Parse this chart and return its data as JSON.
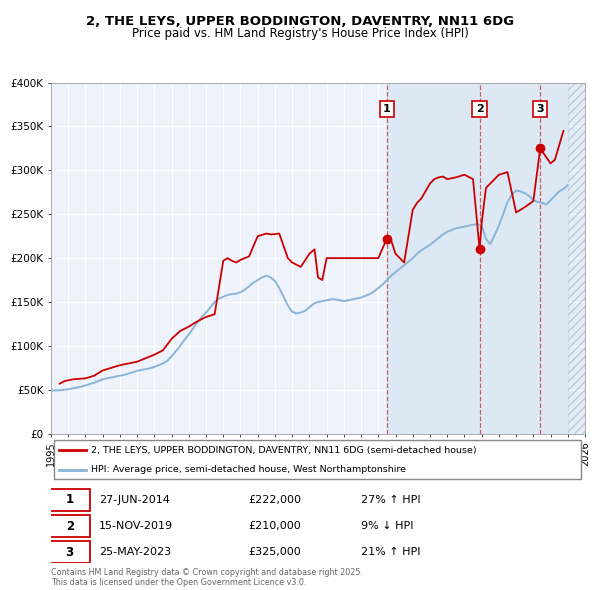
{
  "title": "2, THE LEYS, UPPER BODDINGTON, DAVENTRY, NN11 6DG",
  "subtitle": "Price paid vs. HM Land Registry's House Price Index (HPI)",
  "legend_line1": "2, THE LEYS, UPPER BODDINGTON, DAVENTRY, NN11 6DG (semi-detached house)",
  "legend_line2": "HPI: Average price, semi-detached house, West Northamptonshire",
  "footer": "Contains HM Land Registry data © Crown copyright and database right 2025.\nThis data is licensed under the Open Government Licence v3.0.",
  "title_fontsize": 9.5,
  "subtitle_fontsize": 8.5,
  "red_color": "#cc0000",
  "blue_color": "#8ab4d8",
  "shade_color": "#dce9f5",
  "background_color": "#eef2fa",
  "grid_color": "#ffffff",
  "transactions": [
    {
      "label": "1",
      "date_num": 2014.49,
      "price": 222000,
      "pct": "27%",
      "dir": "↑",
      "date_str": "27-JUN-2014"
    },
    {
      "label": "2",
      "date_num": 2019.88,
      "price": 210000,
      "pct": "9%",
      "dir": "↓",
      "date_str": "15-NOV-2019"
    },
    {
      "label": "3",
      "date_num": 2023.4,
      "price": 325000,
      "pct": "21%",
      "dir": "↑",
      "date_str": "25-MAY-2023"
    }
  ],
  "hpi_data": {
    "years": [
      1995.0,
      1995.25,
      1995.5,
      1995.75,
      1996.0,
      1996.25,
      1996.5,
      1996.75,
      1997.0,
      1997.25,
      1997.5,
      1997.75,
      1998.0,
      1998.25,
      1998.5,
      1998.75,
      1999.0,
      1999.25,
      1999.5,
      1999.75,
      2000.0,
      2000.25,
      2000.5,
      2000.75,
      2001.0,
      2001.25,
      2001.5,
      2001.75,
      2002.0,
      2002.25,
      2002.5,
      2002.75,
      2003.0,
      2003.25,
      2003.5,
      2003.75,
      2004.0,
      2004.25,
      2004.5,
      2004.75,
      2005.0,
      2005.25,
      2005.5,
      2005.75,
      2006.0,
      2006.25,
      2006.5,
      2006.75,
      2007.0,
      2007.25,
      2007.5,
      2007.75,
      2008.0,
      2008.25,
      2008.5,
      2008.75,
      2009.0,
      2009.25,
      2009.5,
      2009.75,
      2010.0,
      2010.25,
      2010.5,
      2010.75,
      2011.0,
      2011.25,
      2011.5,
      2011.75,
      2012.0,
      2012.25,
      2012.5,
      2012.75,
      2013.0,
      2013.25,
      2013.5,
      2013.75,
      2014.0,
      2014.25,
      2014.5,
      2014.75,
      2015.0,
      2015.25,
      2015.5,
      2015.75,
      2016.0,
      2016.25,
      2016.5,
      2016.75,
      2017.0,
      2017.25,
      2017.5,
      2017.75,
      2018.0,
      2018.25,
      2018.5,
      2018.75,
      2019.0,
      2019.25,
      2019.5,
      2019.75,
      2020.0,
      2020.25,
      2020.5,
      2020.75,
      2021.0,
      2021.25,
      2021.5,
      2021.75,
      2022.0,
      2022.25,
      2022.5,
      2022.75,
      2023.0,
      2023.25,
      2023.5,
      2023.75,
      2024.0,
      2024.25,
      2024.5,
      2024.75,
      2025.0
    ],
    "values": [
      49000,
      49200,
      49500,
      50000,
      50500,
      51500,
      52500,
      53500,
      55000,
      56500,
      58000,
      60000,
      62000,
      63000,
      64000,
      65000,
      66000,
      67000,
      68500,
      70000,
      71500,
      72500,
      73500,
      74500,
      76000,
      78000,
      80000,
      83000,
      88000,
      94000,
      100000,
      107000,
      113000,
      120000,
      127000,
      133000,
      138000,
      144000,
      150000,
      154000,
      156000,
      158000,
      159000,
      159500,
      161000,
      164000,
      168000,
      172000,
      175000,
      178000,
      180000,
      178000,
      174000,
      166000,
      156000,
      146000,
      139000,
      137000,
      138000,
      140000,
      144000,
      148000,
      150000,
      151000,
      152000,
      153000,
      153000,
      152000,
      151000,
      152000,
      153000,
      154000,
      155000,
      157000,
      159000,
      162000,
      166000,
      170000,
      175000,
      180000,
      184000,
      188000,
      192000,
      196000,
      200000,
      205000,
      209000,
      212000,
      215000,
      219000,
      223000,
      227000,
      230000,
      232000,
      234000,
      235000,
      236000,
      237000,
      238000,
      239000,
      237000,
      222000,
      216000,
      226000,
      237000,
      250000,
      264000,
      272000,
      277000,
      276000,
      274000,
      271000,
      266000,
      264000,
      263000,
      261000,
      266000,
      271000,
      276000,
      279000,
      283000
    ]
  },
  "price_data": {
    "years": [
      1995.5,
      1995.8,
      1996.3,
      1997.0,
      1997.5,
      1998.0,
      1998.5,
      1999.0,
      1999.5,
      2000.0,
      2000.5,
      2001.0,
      2001.5,
      2002.0,
      2002.5,
      2003.0,
      2003.5,
      2004.0,
      2004.5,
      2005.0,
      2005.25,
      2005.5,
      2005.75,
      2006.0,
      2006.5,
      2007.0,
      2007.5,
      2007.8,
      2008.25,
      2008.75,
      2009.0,
      2009.5,
      2010.0,
      2010.3,
      2010.5,
      2010.75,
      2011.0,
      2011.5,
      2012.0,
      2012.5,
      2013.0,
      2013.5,
      2014.0,
      2014.49,
      2014.75,
      2015.0,
      2015.5,
      2016.0,
      2016.25,
      2016.5,
      2017.0,
      2017.25,
      2017.5,
      2017.75,
      2018.0,
      2018.5,
      2019.0,
      2019.5,
      2019.88,
      2020.0,
      2020.25,
      2021.0,
      2021.5,
      2022.0,
      2022.25,
      2022.5,
      2023.0,
      2023.4,
      2023.75,
      2024.0,
      2024.25,
      2024.75
    ],
    "values": [
      57000,
      60000,
      62000,
      63000,
      66000,
      72000,
      75000,
      78000,
      80000,
      82000,
      86000,
      90000,
      95000,
      108000,
      117000,
      122000,
      128000,
      133000,
      136000,
      197000,
      200000,
      197000,
      195000,
      198000,
      202000,
      225000,
      228000,
      227000,
      228000,
      200000,
      195000,
      190000,
      205000,
      210000,
      178000,
      175000,
      200000,
      200000,
      200000,
      200000,
      200000,
      200000,
      200000,
      222000,
      220000,
      205000,
      195000,
      255000,
      263000,
      268000,
      285000,
      290000,
      292000,
      293000,
      290000,
      292000,
      295000,
      290000,
      210000,
      240000,
      280000,
      295000,
      298000,
      252000,
      255000,
      258000,
      265000,
      325000,
      315000,
      308000,
      312000,
      345000
    ]
  },
  "ylim": [
    0,
    400000
  ],
  "xlim": [
    1995,
    2026
  ],
  "yticks": [
    0,
    50000,
    100000,
    150000,
    200000,
    250000,
    300000,
    350000,
    400000
  ],
  "ytick_labels": [
    "£0",
    "£50K",
    "£100K",
    "£150K",
    "£200K",
    "£250K",
    "£300K",
    "£350K",
    "£400K"
  ],
  "xticks": [
    1995,
    1996,
    1997,
    1998,
    1999,
    2000,
    2001,
    2002,
    2003,
    2004,
    2005,
    2006,
    2007,
    2008,
    2009,
    2010,
    2011,
    2012,
    2013,
    2014,
    2015,
    2016,
    2017,
    2018,
    2019,
    2020,
    2021,
    2022,
    2023,
    2024,
    2025,
    2026
  ]
}
